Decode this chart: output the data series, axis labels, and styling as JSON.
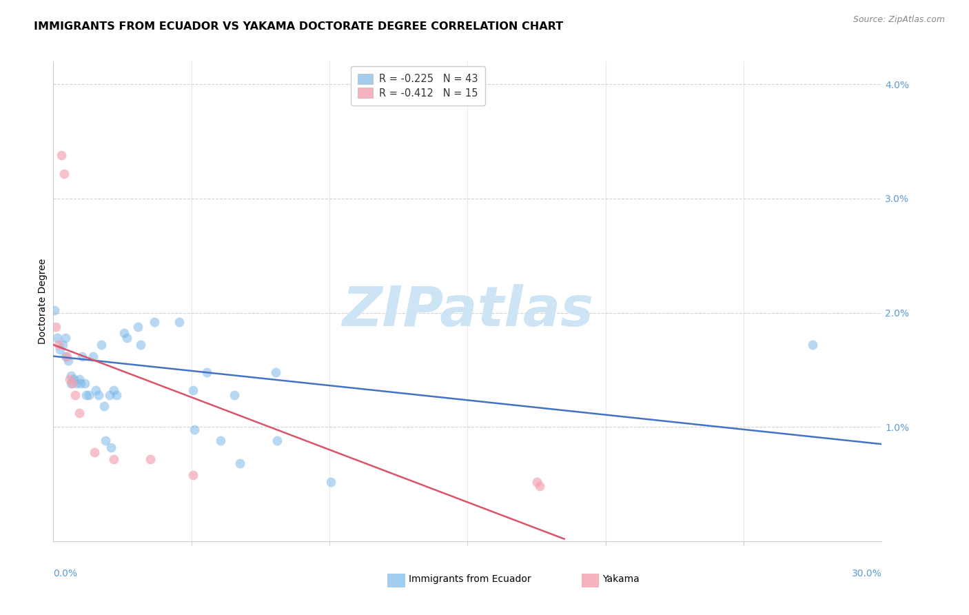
{
  "title": "IMMIGRANTS FROM ECUADOR VS YAKAMA DOCTORATE DEGREE CORRELATION CHART",
  "source": "Source: ZipAtlas.com",
  "ylabel": "Doctorate Degree",
  "xmin": 0.0,
  "xmax": 30.0,
  "ymin": 0.0,
  "ymax": 4.2,
  "blue_scatter": [
    [
      0.05,
      2.02
    ],
    [
      0.15,
      1.78
    ],
    [
      0.25,
      1.68
    ],
    [
      0.35,
      1.72
    ],
    [
      0.45,
      1.78
    ],
    [
      0.45,
      1.62
    ],
    [
      0.55,
      1.58
    ],
    [
      0.65,
      1.45
    ],
    [
      0.65,
      1.38
    ],
    [
      0.75,
      1.42
    ],
    [
      0.85,
      1.38
    ],
    [
      0.95,
      1.42
    ],
    [
      1.0,
      1.38
    ],
    [
      1.05,
      1.62
    ],
    [
      1.15,
      1.38
    ],
    [
      1.2,
      1.28
    ],
    [
      1.3,
      1.28
    ],
    [
      1.45,
      1.62
    ],
    [
      1.55,
      1.32
    ],
    [
      1.65,
      1.28
    ],
    [
      1.75,
      1.72
    ],
    [
      1.85,
      1.18
    ],
    [
      1.9,
      0.88
    ],
    [
      2.05,
      1.28
    ],
    [
      2.1,
      0.82
    ],
    [
      2.2,
      1.32
    ],
    [
      2.3,
      1.28
    ],
    [
      2.55,
      1.82
    ],
    [
      2.65,
      1.78
    ],
    [
      3.05,
      1.88
    ],
    [
      3.15,
      1.72
    ],
    [
      3.65,
      1.92
    ],
    [
      4.55,
      1.92
    ],
    [
      5.05,
      1.32
    ],
    [
      5.1,
      0.98
    ],
    [
      5.55,
      1.48
    ],
    [
      6.05,
      0.88
    ],
    [
      6.55,
      1.28
    ],
    [
      6.75,
      0.68
    ],
    [
      8.05,
      1.48
    ],
    [
      8.1,
      0.88
    ],
    [
      10.05,
      0.52
    ],
    [
      27.5,
      1.72
    ]
  ],
  "pink_scatter": [
    [
      0.1,
      1.88
    ],
    [
      0.2,
      1.72
    ],
    [
      0.3,
      3.38
    ],
    [
      0.4,
      3.22
    ],
    [
      0.5,
      1.62
    ],
    [
      0.6,
      1.42
    ],
    [
      0.7,
      1.38
    ],
    [
      0.8,
      1.28
    ],
    [
      0.95,
      1.12
    ],
    [
      1.5,
      0.78
    ],
    [
      2.2,
      0.72
    ],
    [
      3.5,
      0.72
    ],
    [
      5.05,
      0.58
    ],
    [
      17.5,
      0.52
    ],
    [
      17.6,
      0.48
    ]
  ],
  "blue_line_x": [
    0.0,
    30.0
  ],
  "blue_line_y": [
    1.62,
    0.85
  ],
  "pink_line_x": [
    0.0,
    18.5
  ],
  "pink_line_y": [
    1.72,
    0.02
  ],
  "blue_scatter_color": "#7db8e8",
  "pink_scatter_color": "#f4a0b0",
  "blue_line_color": "#4472c4",
  "pink_line_color": "#d9546a",
  "scatter_alpha": 0.55,
  "scatter_size": 100,
  "watermark": "ZIPatlas",
  "watermark_color": "#cde4f5",
  "axis_label_color": "#5b9bd5",
  "grid_color": "#cccccc",
  "title_fontsize": 11.5,
  "source_fontsize": 9,
  "ylabel_fontsize": 10,
  "legend_r_color": "#d04060",
  "legend_n_color": "#1a6cb5",
  "legend1_label": "R = -0.225   N = 43",
  "legend2_label": "R = -0.412   N = 15",
  "bottom_legend_blue_label": "Immigrants from Ecuador",
  "bottom_legend_pink_label": "Yakama"
}
